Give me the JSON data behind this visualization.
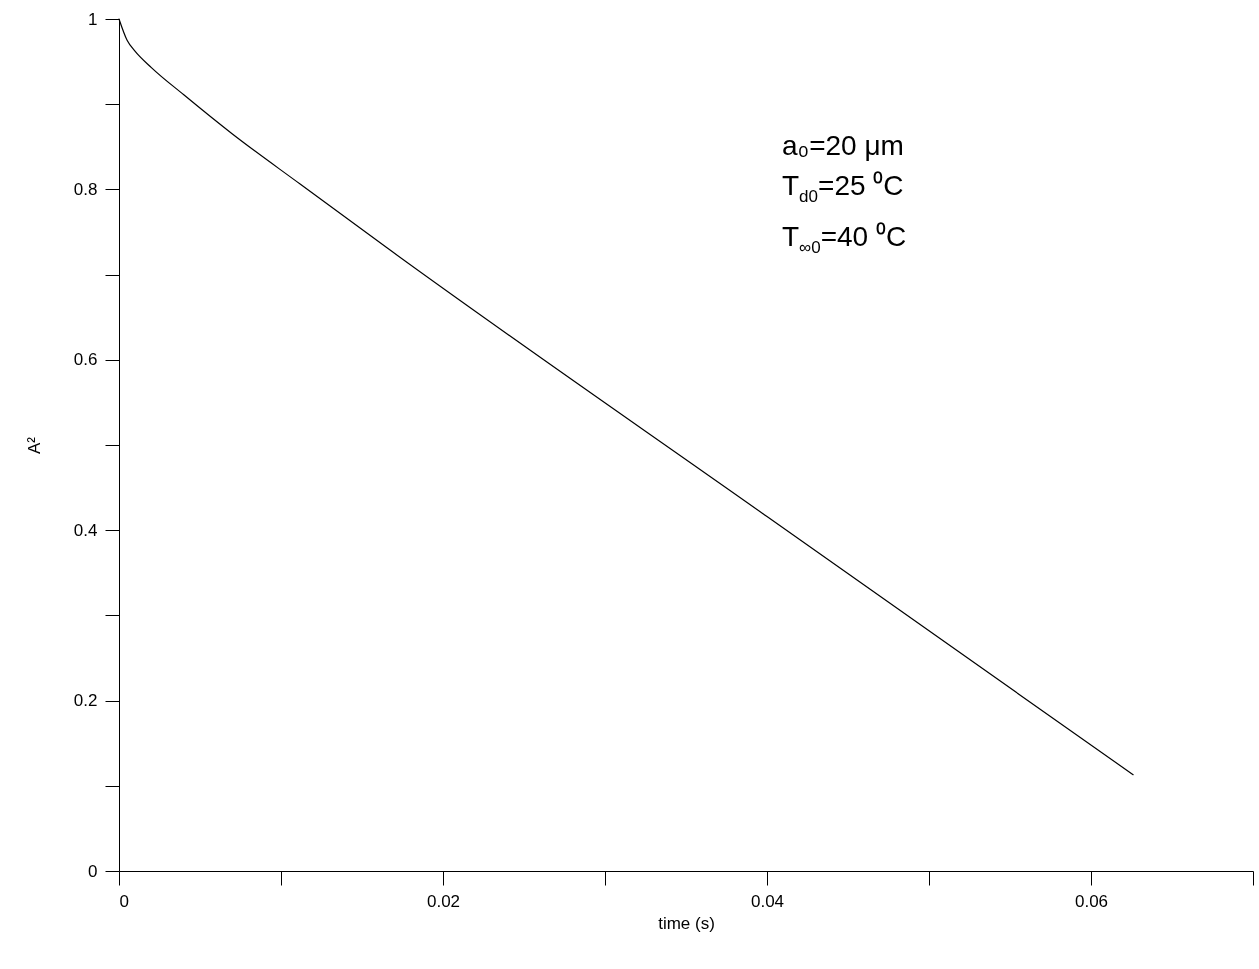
{
  "chart_data": {
    "type": "line",
    "xlabel": "time (s)",
    "ylabel": "A²",
    "annotations": [
      "a₀=20 μm",
      "T$_{d0}$=25 ⁰C",
      "T$_{∞0}$=40 ⁰C"
    ],
    "x": [
      0,
      0.0005,
      0.001,
      0.002,
      0.004,
      0.007,
      0.0112,
      0.0165,
      0.04,
      0.0626
    ],
    "series": [
      {
        "color": "#000000",
        "values": [
          1,
          0.975,
          0.962,
          0.943,
          0.911,
          0.865,
          0.806,
          0.732,
          0.416,
          0.113
        ]
      }
    ],
    "xlim": [
      0,
      0.07
    ],
    "ylim": [
      0,
      1
    ],
    "xticks": [
      0,
      {
        "value": 0.01,
        "label": null
      },
      0.02,
      {
        "value": 0.03,
        "label": null
      },
      0.04,
      {
        "value": 0.05,
        "label": null
      },
      0.06,
      {
        "value": 0.07,
        "label": null
      }
    ],
    "yticks": [
      0,
      {
        "value": 0.1,
        "label": null
      },
      0.2,
      {
        "value": 0.3,
        "label": null
      },
      0.4,
      {
        "value": 0.5,
        "label": null
      },
      0.6,
      {
        "value": 0.7,
        "label": null
      },
      0.8,
      {
        "value": 0.9,
        "label": null
      },
      1
    ],
    "line_style": "solid"
  }
}
